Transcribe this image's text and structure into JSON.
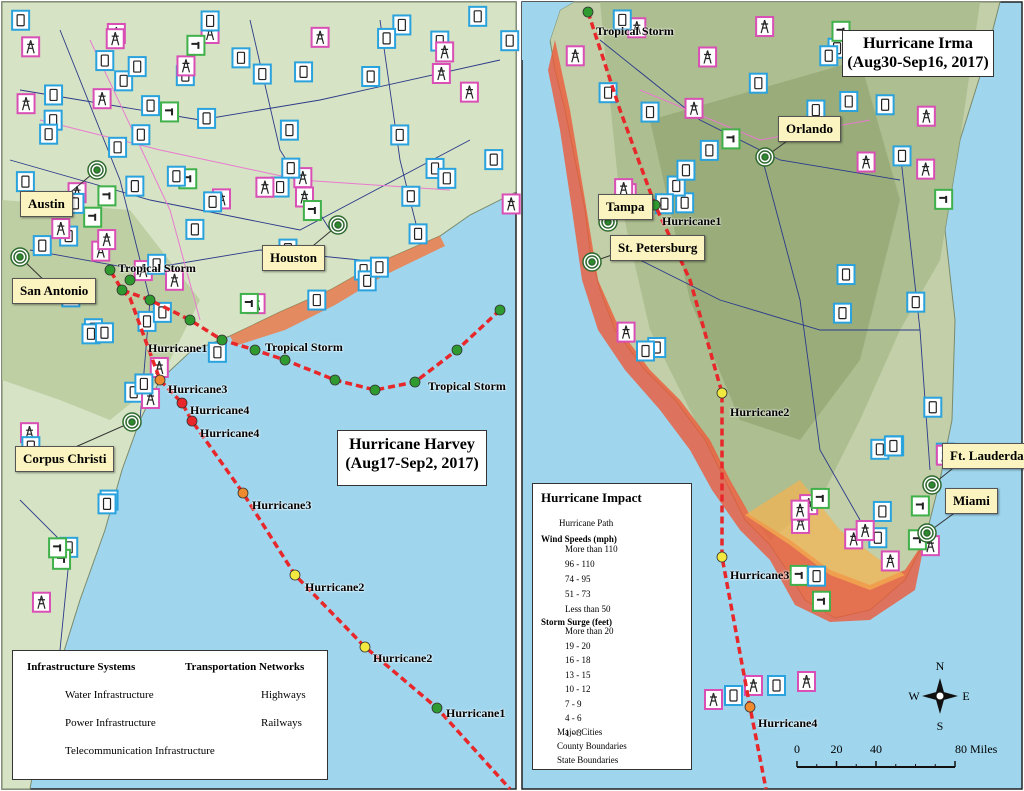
{
  "harvey": {
    "title": "Hurricane Harvey",
    "dates": "(Aug17-Sep2, 2017)",
    "cities": [
      "Austin",
      "San Antonio",
      "Houston",
      "Corpus Christi"
    ],
    "path_labels": [
      "Tropical Storm",
      "Hurricane1",
      "Tropical Storm",
      "Tropical Storm",
      "Hurricane3",
      "Hurricane4",
      "Hurricane4",
      "Hurricane3",
      "Hurricane2",
      "Hurricane2",
      "Hurricane1"
    ]
  },
  "harvey_legend": {
    "infrastructure_title": "Infrastructure Systems",
    "infrastructure": [
      "Water Infrastructure",
      "Power Infrastructure",
      "Telecommunication Infrastructure"
    ],
    "transport_title": "Transportation Networks",
    "transport": [
      "Highways",
      "Railways"
    ]
  },
  "irma": {
    "title": "Hurricane Irma",
    "dates": "(Aug30-Sep16, 2017)",
    "cities": [
      "Orlando",
      "Tampa",
      "St. Petersburg",
      "Ft. Lauderdale",
      "Miami"
    ],
    "path_labels": [
      "Tropical Storm",
      "Hurricane1",
      "Hurricane2",
      "Hurricane3",
      "Hurricane4"
    ]
  },
  "irma_legend": {
    "title": "Hurricane Impact",
    "path": "Hurricane Path",
    "wind_title": "Wind Speeds (mph)",
    "wind": [
      "More than 110",
      "96 - 110",
      "74 - 95",
      "51 - 73",
      "Less than 50"
    ],
    "surge_title": "Storm Surge (feet)",
    "surge": [
      "More than 20",
      "19 - 20",
      "16 - 18",
      "13 - 15",
      "10 - 12",
      "7 - 9",
      "4 - 6",
      "1 - 3"
    ],
    "other": [
      "Major Cities",
      "County Boundaries",
      "State Boundaries"
    ]
  },
  "compass": [
    "N",
    "E",
    "S",
    "W"
  ],
  "scale": {
    "ticks": [
      0,
      20,
      40,
      {
        "value": 80,
        "label": "80 Miles"
      }
    ]
  }
}
